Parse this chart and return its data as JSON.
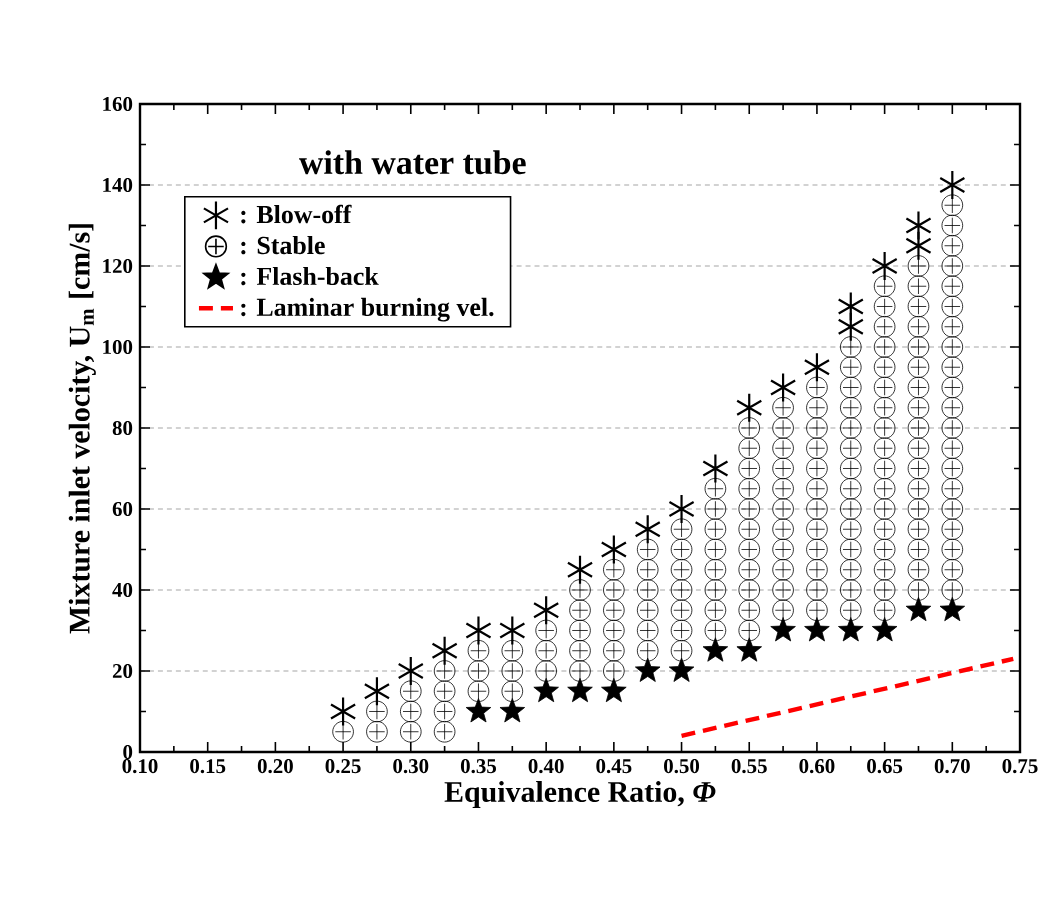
{
  "chart_data": {
    "type": "scatter",
    "xlabel": "Equivalence Ratio, *Φ*",
    "ylabel": "Mixture inlet velocity, U$_{m}$ [cm/s]",
    "annotations": [
      "with water tube"
    ],
    "xlim": [
      0.1,
      0.75
    ],
    "ylim": [
      0,
      160
    ],
    "xticks": [
      {
        "value": 0.1,
        "label": "0.10"
      },
      {
        "value": 0.15,
        "label": "0.15"
      },
      {
        "value": 0.2,
        "label": "0.20"
      },
      {
        "value": 0.25,
        "label": "0.25"
      },
      {
        "value": 0.3,
        "label": "0.30"
      },
      {
        "value": 0.35,
        "label": "0.35"
      },
      {
        "value": 0.4,
        "label": "0.40"
      },
      {
        "value": 0.45,
        "label": "0.45"
      },
      {
        "value": 0.5,
        "label": "0.50"
      },
      {
        "value": 0.55,
        "label": "0.55"
      },
      {
        "value": 0.6,
        "label": "0.60"
      },
      {
        "value": 0.65,
        "label": "0.65"
      },
      {
        "value": 0.7,
        "label": "0.70"
      },
      {
        "value": 0.75,
        "label": "0.75"
      }
    ],
    "yticks": [
      0,
      20,
      40,
      60,
      80,
      100,
      120,
      140,
      160
    ],
    "grid": "y",
    "legend": "top left",
    "series": [
      {
        "name": ": Blow-off",
        "marker": "cross",
        "color": "#000000",
        "x": [
          0.25,
          0.275,
          0.3,
          0.325,
          0.35,
          0.375,
          0.4,
          0.425,
          0.45,
          0.475,
          0.5,
          0.525,
          0.55,
          0.575,
          0.6,
          0.625,
          0.625,
          0.65,
          0.675,
          0.675,
          0.7
        ],
        "values": [
          10,
          15,
          20,
          25,
          30,
          30,
          35,
          45,
          50,
          55,
          60,
          70,
          85,
          90,
          95,
          105,
          110,
          120,
          125,
          130,
          140
        ]
      },
      {
        "name": ": Stable",
        "marker": "circle",
        "color": "#000000",
        "x": [
          0.25,
          0.275,
          0.275,
          0.3,
          0.3,
          0.3,
          0.325,
          0.325,
          0.325,
          0.325,
          0.35,
          0.35,
          0.35,
          0.375,
          0.375,
          0.375,
          0.4,
          0.4,
          0.4,
          0.425,
          0.425,
          0.425,
          0.425,
          0.425,
          0.45,
          0.45,
          0.45,
          0.45,
          0.45,
          0.45,
          0.475,
          0.475,
          0.475,
          0.475,
          0.475,
          0.475,
          0.5,
          0.5,
          0.5,
          0.5,
          0.5,
          0.5,
          0.5,
          0.525,
          0.525,
          0.525,
          0.525,
          0.525,
          0.525,
          0.525,
          0.525,
          0.55,
          0.55,
          0.55,
          0.55,
          0.55,
          0.55,
          0.55,
          0.55,
          0.55,
          0.55,
          0.55,
          0.575,
          0.575,
          0.575,
          0.575,
          0.575,
          0.575,
          0.575,
          0.575,
          0.575,
          0.575,
          0.575,
          0.6,
          0.6,
          0.6,
          0.6,
          0.6,
          0.6,
          0.6,
          0.6,
          0.6,
          0.6,
          0.6,
          0.6,
          0.625,
          0.625,
          0.625,
          0.625,
          0.625,
          0.625,
          0.625,
          0.625,
          0.625,
          0.625,
          0.625,
          0.625,
          0.625,
          0.625,
          0.65,
          0.65,
          0.65,
          0.65,
          0.65,
          0.65,
          0.65,
          0.65,
          0.65,
          0.65,
          0.65,
          0.65,
          0.65,
          0.65,
          0.65,
          0.65,
          0.65,
          0.675,
          0.675,
          0.675,
          0.675,
          0.675,
          0.675,
          0.675,
          0.675,
          0.675,
          0.675,
          0.675,
          0.675,
          0.675,
          0.675,
          0.675,
          0.675,
          0.675,
          0.7,
          0.7,
          0.7,
          0.7,
          0.7,
          0.7,
          0.7,
          0.7,
          0.7,
          0.7,
          0.7,
          0.7,
          0.7,
          0.7,
          0.7,
          0.7,
          0.7,
          0.7,
          0.7,
          0.7
        ],
        "values": [
          5,
          5,
          10,
          5,
          10,
          15,
          5,
          10,
          15,
          20,
          15,
          20,
          25,
          15,
          20,
          25,
          20,
          25,
          30,
          20,
          25,
          30,
          35,
          40,
          20,
          25,
          30,
          35,
          40,
          45,
          25,
          30,
          35,
          40,
          45,
          50,
          25,
          30,
          35,
          40,
          45,
          50,
          55,
          30,
          35,
          40,
          45,
          50,
          55,
          60,
          65,
          30,
          35,
          40,
          45,
          50,
          55,
          60,
          65,
          70,
          75,
          80,
          35,
          40,
          45,
          50,
          55,
          60,
          65,
          70,
          75,
          80,
          85,
          35,
          40,
          45,
          50,
          55,
          60,
          65,
          70,
          75,
          80,
          85,
          90,
          35,
          40,
          45,
          50,
          55,
          60,
          65,
          70,
          75,
          80,
          85,
          90,
          95,
          100,
          35,
          40,
          45,
          50,
          55,
          60,
          65,
          70,
          75,
          80,
          85,
          90,
          95,
          100,
          105,
          110,
          115,
          40,
          45,
          50,
          55,
          60,
          65,
          70,
          75,
          80,
          85,
          90,
          95,
          100,
          105,
          110,
          115,
          120,
          40,
          45,
          50,
          55,
          60,
          65,
          70,
          75,
          80,
          85,
          90,
          95,
          100,
          105,
          110,
          115,
          120,
          125,
          130,
          135
        ]
      },
      {
        "name": ": Flash-back",
        "marker": "star",
        "color": "#000000",
        "x": [
          0.35,
          0.375,
          0.4,
          0.425,
          0.45,
          0.475,
          0.5,
          0.525,
          0.55,
          0.575,
          0.6,
          0.625,
          0.65,
          0.675,
          0.7
        ],
        "values": [
          10,
          10,
          15,
          15,
          15,
          20,
          20,
          25,
          25,
          30,
          30,
          30,
          30,
          35,
          35
        ]
      },
      {
        "name": ": Laminar burning vel.",
        "type": "line",
        "marker": "none",
        "line_style": "dashed",
        "color": "#ff0000",
        "x": [
          0.5,
          0.745
        ],
        "values": [
          4,
          23
        ]
      }
    ]
  }
}
